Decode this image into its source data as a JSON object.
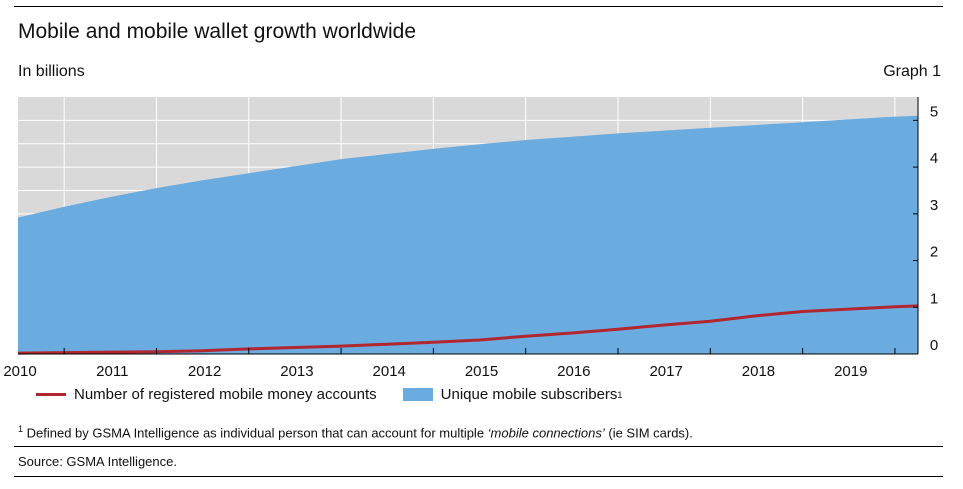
{
  "header": {
    "title": "Mobile and mobile wallet growth worldwide",
    "unit_label": "In billions",
    "graph_id": "Graph 1"
  },
  "legend": {
    "line_label": "Number of registered mobile money accounts",
    "area_label": "Unique mobile subscribers",
    "area_superscript": "1"
  },
  "footnote": {
    "marker": "1",
    "text_before": " Defined by GSMA Intelligence as individual person that can account for multiple ",
    "text_italic": "‘mobile connections’",
    "text_after": " (ie SIM cards)."
  },
  "source": "Source: GSMA Intelligence.",
  "colors": {
    "area": "#6aace0",
    "line": "#b2262f",
    "background": "#d9d9d9",
    "grid": "#ffffff"
  },
  "chart_data": {
    "type": "area",
    "x_ticks": [
      "2010",
      "2011",
      "2012",
      "2013",
      "2014",
      "2015",
      "2016",
      "2017",
      "2018",
      "2019"
    ],
    "y_ticks": [
      "0",
      "1",
      "2",
      "3",
      "4",
      "5"
    ],
    "ylim": [
      0,
      5.5
    ],
    "xlim": [
      2010,
      2019.75
    ],
    "y_axis_position": "right",
    "grid": true,
    "series": [
      {
        "name": "Unique mobile subscribers",
        "type": "area",
        "x": [
          2010,
          2010.5,
          2011,
          2011.5,
          2012,
          2012.5,
          2013,
          2013.5,
          2014,
          2014.5,
          2015,
          2015.5,
          2016,
          2016.5,
          2017,
          2017.5,
          2018,
          2018.5,
          2019,
          2019.5,
          2019.75
        ],
        "values": [
          2.92,
          3.15,
          3.36,
          3.55,
          3.72,
          3.87,
          4.02,
          4.17,
          4.28,
          4.39,
          4.49,
          4.58,
          4.65,
          4.72,
          4.78,
          4.84,
          4.9,
          4.96,
          5.02,
          5.08,
          5.1
        ]
      },
      {
        "name": "Number of registered mobile money accounts",
        "type": "line",
        "x": [
          2010,
          2010.5,
          2011,
          2011.5,
          2012,
          2012.5,
          2013,
          2013.5,
          2014,
          2014.5,
          2015,
          2015.5,
          2016,
          2016.5,
          2017,
          2017.5,
          2018,
          2018.5,
          2019,
          2019.5,
          2019.75
        ],
        "values": [
          0.02,
          0.03,
          0.04,
          0.05,
          0.07,
          0.11,
          0.14,
          0.17,
          0.21,
          0.25,
          0.3,
          0.38,
          0.45,
          0.53,
          0.62,
          0.7,
          0.82,
          0.91,
          0.96,
          1.01,
          1.03
        ]
      }
    ]
  }
}
